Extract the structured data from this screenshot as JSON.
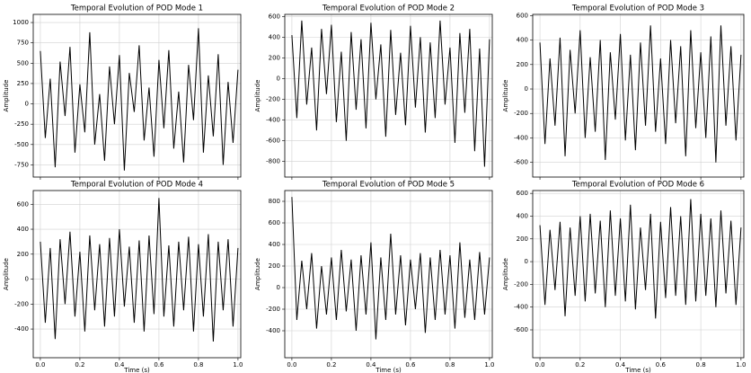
{
  "chart_data": [
    {
      "type": "line",
      "title": "Temporal Evolution of POD Mode 1",
      "ylabel": "Amplitude",
      "color": "#000000",
      "grid": true,
      "xtick_labels": false,
      "xlim": [
        -0.036,
        1.014
      ],
      "ylim": [
        -900,
        1100
      ],
      "xticks": [
        {
          "value": 0,
          "label": "0.0"
        },
        0.2,
        0.4,
        0.6,
        0.8,
        {
          "value": 1,
          "label": "1.0"
        }
      ],
      "yticks": [
        -750,
        -500,
        -250,
        0,
        250,
        500,
        750,
        1000
      ],
      "x": [
        0,
        0.025,
        0.05,
        0.075,
        0.1,
        0.125,
        0.15,
        0.175,
        0.2,
        0.225,
        0.25,
        0.275,
        0.3,
        0.325,
        0.35,
        0.375,
        0.4,
        0.425,
        0.45,
        0.475,
        0.5,
        0.525,
        0.55,
        0.575,
        0.6,
        0.625,
        0.65,
        0.675,
        0.7,
        0.725,
        0.75,
        0.775,
        0.8,
        0.825,
        0.85,
        0.875,
        0.9,
        0.925,
        0.95,
        0.975,
        1
      ],
      "values": [
        650,
        -420,
        310,
        -780,
        520,
        -150,
        700,
        -600,
        240,
        -350,
        880,
        -500,
        120,
        -700,
        460,
        -250,
        600,
        -820,
        380,
        -100,
        720,
        -450,
        200,
        -650,
        540,
        -300,
        660,
        -550,
        150,
        -720,
        480,
        -200,
        930,
        -600,
        350,
        -400,
        610,
        -750,
        270,
        -480,
        420
      ]
    },
    {
      "type": "line",
      "title": "Temporal Evolution of POD Mode 2",
      "ylabel": "Amplitude",
      "color": "#000000",
      "grid": true,
      "xtick_labels": false,
      "xlim": [
        -0.036,
        1.014
      ],
      "ylim": [
        -950,
        620
      ],
      "xticks": [
        {
          "value": 0,
          "label": "0.0"
        },
        0.2,
        0.4,
        0.6,
        0.8,
        {
          "value": 1,
          "label": "1.0"
        }
      ],
      "yticks": [
        -800,
        -600,
        -400,
        -200,
        0,
        200,
        400,
        600
      ],
      "x": [
        0,
        0.025,
        0.05,
        0.075,
        0.1,
        0.125,
        0.15,
        0.175,
        0.2,
        0.225,
        0.25,
        0.275,
        0.3,
        0.325,
        0.35,
        0.375,
        0.4,
        0.425,
        0.45,
        0.475,
        0.5,
        0.525,
        0.55,
        0.575,
        0.6,
        0.625,
        0.65,
        0.675,
        0.7,
        0.725,
        0.75,
        0.775,
        0.8,
        0.825,
        0.85,
        0.875,
        0.9,
        0.925,
        0.95,
        0.975,
        1
      ],
      "values": [
        420,
        -380,
        560,
        -250,
        300,
        -500,
        480,
        -150,
        520,
        -420,
        260,
        -600,
        450,
        -300,
        380,
        -480,
        540,
        -200,
        330,
        -560,
        470,
        -350,
        250,
        -450,
        510,
        -280,
        400,
        -520,
        350,
        -380,
        560,
        -250,
        300,
        -620,
        440,
        -330,
        480,
        -700,
        290,
        -850,
        380
      ]
    },
    {
      "type": "line",
      "title": "Temporal Evolution of POD Mode 3",
      "ylabel": "Amplitude",
      "color": "#000000",
      "grid": true,
      "xtick_labels": false,
      "xlim": [
        -0.036,
        1.014
      ],
      "ylim": [
        -720,
        610
      ],
      "xticks": [
        {
          "value": 0,
          "label": "0.0"
        },
        0.2,
        0.4,
        0.6,
        0.8,
        {
          "value": 1,
          "label": "1.0"
        }
      ],
      "yticks": [
        -600,
        -400,
        -200,
        0,
        200,
        400,
        600
      ],
      "x": [
        0,
        0.025,
        0.05,
        0.075,
        0.1,
        0.125,
        0.15,
        0.175,
        0.2,
        0.225,
        0.25,
        0.275,
        0.3,
        0.325,
        0.35,
        0.375,
        0.4,
        0.425,
        0.45,
        0.475,
        0.5,
        0.525,
        0.55,
        0.575,
        0.6,
        0.625,
        0.65,
        0.675,
        0.7,
        0.725,
        0.75,
        0.775,
        0.8,
        0.825,
        0.85,
        0.875,
        0.9,
        0.925,
        0.95,
        0.975,
        1
      ],
      "values": [
        380,
        -450,
        250,
        -300,
        420,
        -550,
        320,
        -200,
        480,
        -400,
        260,
        -350,
        400,
        -580,
        300,
        -250,
        450,
        -420,
        280,
        -500,
        380,
        -300,
        520,
        -350,
        250,
        -450,
        400,
        -280,
        350,
        -550,
        480,
        -320,
        300,
        -400,
        430,
        -600,
        520,
        -300,
        350,
        -420,
        280
      ]
    },
    {
      "type": "line",
      "title": "Temporal Evolution of POD Mode 4",
      "xlabel": "Time (s)",
      "ylabel": "Amplitude",
      "color": "#000000",
      "grid": true,
      "xtick_labels": true,
      "xlim": [
        -0.036,
        1.014
      ],
      "ylim": [
        -630,
        710
      ],
      "xticks": [
        {
          "value": 0,
          "label": "0.0"
        },
        0.2,
        0.4,
        0.6,
        0.8,
        {
          "value": 1,
          "label": "1.0"
        }
      ],
      "yticks": [
        -400,
        -200,
        0,
        200,
        400,
        600
      ],
      "x": [
        0,
        0.025,
        0.05,
        0.075,
        0.1,
        0.125,
        0.15,
        0.175,
        0.2,
        0.225,
        0.25,
        0.275,
        0.3,
        0.325,
        0.35,
        0.375,
        0.4,
        0.425,
        0.45,
        0.475,
        0.5,
        0.525,
        0.55,
        0.575,
        0.6,
        0.625,
        0.65,
        0.675,
        0.7,
        0.725,
        0.75,
        0.775,
        0.8,
        0.825,
        0.85,
        0.875,
        0.9,
        0.925,
        0.95,
        0.975,
        1
      ],
      "values": [
        300,
        -350,
        250,
        -480,
        320,
        -200,
        380,
        -300,
        220,
        -420,
        350,
        -250,
        280,
        -380,
        330,
        -300,
        400,
        -220,
        260,
        -350,
        310,
        -420,
        350,
        -280,
        650,
        -300,
        270,
        -380,
        300,
        -250,
        340,
        -420,
        280,
        -300,
        360,
        -500,
        300,
        -250,
        320,
        -380,
        250
      ]
    },
    {
      "type": "line",
      "title": "Temporal Evolution of POD Mode 5",
      "xlabel": "Time (s)",
      "ylabel": "Amplitude",
      "color": "#000000",
      "grid": true,
      "xtick_labels": true,
      "xlim": [
        -0.036,
        1.014
      ],
      "ylim": [
        -650,
        900
      ],
      "xticks": [
        {
          "value": 0,
          "label": "0.0"
        },
        0.2,
        0.4,
        0.6,
        0.8,
        {
          "value": 1,
          "label": "1.0"
        }
      ],
      "yticks": [
        -400,
        -200,
        0,
        200,
        400,
        600,
        800
      ],
      "x": [
        0,
        0.025,
        0.05,
        0.075,
        0.1,
        0.125,
        0.15,
        0.175,
        0.2,
        0.225,
        0.25,
        0.275,
        0.3,
        0.325,
        0.35,
        0.375,
        0.4,
        0.425,
        0.45,
        0.475,
        0.5,
        0.525,
        0.55,
        0.575,
        0.6,
        0.625,
        0.65,
        0.675,
        0.7,
        0.725,
        0.75,
        0.775,
        0.8,
        0.825,
        0.85,
        0.875,
        0.9,
        0.925,
        0.95,
        0.975,
        1
      ],
      "values": [
        840,
        -300,
        250,
        -200,
        320,
        -380,
        200,
        -250,
        280,
        -300,
        350,
        -220,
        260,
        -400,
        300,
        -250,
        420,
        -480,
        280,
        -300,
        500,
        -250,
        300,
        -350,
        260,
        -200,
        320,
        -420,
        280,
        -300,
        350,
        -250,
        300,
        -380,
        420,
        -280,
        260,
        -300,
        330,
        -250,
        280
      ]
    },
    {
      "type": "line",
      "title": "Temporal Evolution of POD Mode 6",
      "xlabel": "Time (s)",
      "ylabel": "Amplitude",
      "color": "#000000",
      "grid": true,
      "xtick_labels": true,
      "xlim": [
        -0.036,
        1.014
      ],
      "ylim": [
        -845,
        625
      ],
      "xticks": [
        {
          "value": 0,
          "label": "0.0"
        },
        0.2,
        0.4,
        0.6,
        0.8,
        {
          "value": 1,
          "label": "1.0"
        }
      ],
      "yticks": [
        -600,
        -400,
        -200,
        0,
        200,
        400,
        600
      ],
      "x": [
        0,
        0.025,
        0.05,
        0.075,
        0.1,
        0.125,
        0.15,
        0.175,
        0.2,
        0.225,
        0.25,
        0.275,
        0.3,
        0.325,
        0.35,
        0.375,
        0.4,
        0.425,
        0.45,
        0.475,
        0.5,
        0.525,
        0.55,
        0.575,
        0.6,
        0.625,
        0.65,
        0.675,
        0.7,
        0.725,
        0.75,
        0.775,
        0.8,
        0.825,
        0.85,
        0.875,
        0.9,
        0.925,
        0.95,
        0.975,
        1
      ],
      "values": [
        320,
        -380,
        280,
        -250,
        350,
        -480,
        300,
        -300,
        400,
        -350,
        420,
        -280,
        360,
        -400,
        450,
        -300,
        380,
        -350,
        500,
        -420,
        300,
        -250,
        420,
        -500,
        350,
        -320,
        480,
        -300,
        400,
        -380,
        550,
        -350,
        420,
        -300,
        380,
        -400,
        450,
        -280,
        360,
        -380,
        300
      ]
    }
  ]
}
